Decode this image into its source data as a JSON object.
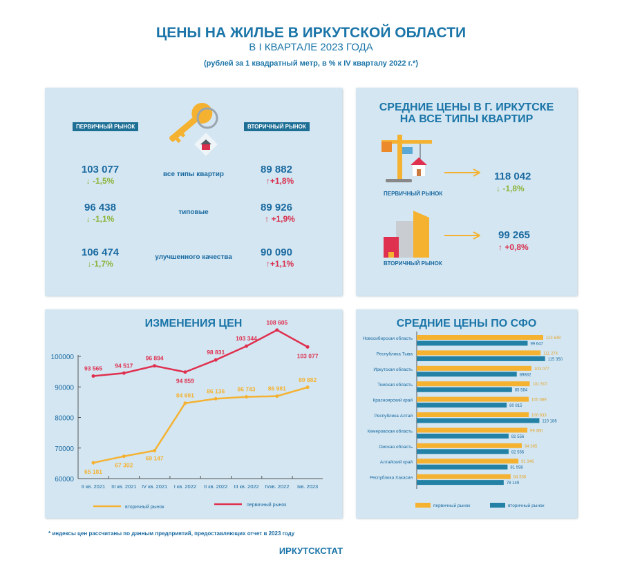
{
  "header": {
    "title": "ЦЕНЫ НА ЖИЛЬЕ В ИРКУТСКОЙ ОБЛАСТИ",
    "subtitle": "В I КВАРТАЛЕ 2023 ГОДА",
    "units": "(рублей за 1 квадратный метр, в % к IV кварталу 2022 г.*)"
  },
  "region_panel": {
    "primary_tag": "ПЕРВИЧНЫЙ РЫНОК",
    "secondary_tag": "ВТОРИЧНЫЙ РЫНОК",
    "rows": [
      {
        "label": "все типы квартир",
        "primary": "103 077",
        "primary_change": "↓ -1,5%",
        "secondary": "89 882",
        "secondary_change": "↑+1,8%"
      },
      {
        "label": "типовые",
        "primary": "96 438",
        "primary_change": "↓ -1,1%",
        "secondary": "89 926",
        "secondary_change": "↑ +1,9%"
      },
      {
        "label": "улучшенного качества",
        "primary": "106 474",
        "primary_change": "↓-1,7%",
        "secondary": "90 090",
        "secondary_change": "↑+1,1%"
      }
    ]
  },
  "city_panel": {
    "title_line1": "СРЕДНИЕ  ЦЕНЫ  В  Г.  ИРКУТСКЕ",
    "title_line2": "НА ВСЕ ТИПЫ КВАРТИР",
    "primary": {
      "label": "ПЕРВИЧНЫЙ РЫНОК",
      "value": "118 042",
      "change": "↓ -1,8%"
    },
    "secondary": {
      "label": "ВТОРИЧНЫЙ РЫНОК",
      "value": "99 265",
      "change": "↑ +0,8%"
    }
  },
  "colors": {
    "primary": "#e0304f",
    "secondary": "#f5b231",
    "blue": "#2381a6",
    "panel": "#d3e6f2"
  },
  "chart_data": [
    {
      "type": "line",
      "title": "ИЗМЕНЕНИЯ ЦЕН",
      "ylim": [
        60000,
        100000
      ],
      "yticks": [
        "60000",
        "70000",
        "80000",
        "90000",
        "100000"
      ],
      "categories": [
        "II кв. 2021",
        "III кв. 2021",
        "IV кв. 2021",
        "I кв. 2022",
        "II кв. 2022",
        "III кв. 2022",
        "IVкв. 2022",
        "Iкв. 2023"
      ],
      "series": [
        {
          "name": "первичный рынок",
          "values": [
            93565,
            94517,
            96894,
            94859,
            98831,
            103344,
            108605,
            103077
          ],
          "labels": [
            "93 565",
            "94 517",
            "96 894",
            "94 859",
            "98 831",
            "103 344",
            "108 605",
            "103 077"
          ]
        },
        {
          "name": "вторичный рынок",
          "values": [
            65181,
            67302,
            69147,
            84691,
            86136,
            86743,
            86981,
            89882
          ],
          "labels": [
            "65 181",
            "67 302",
            "69 147",
            "84 691",
            "86 136",
            "86 743",
            "86 981",
            "89 882"
          ]
        }
      ]
    },
    {
      "type": "bar",
      "title": "СРЕДНИЕ ЦЕНЫ ПО СФО",
      "orientation": "horizontal",
      "categories": [
        "Новосибирская область",
        "Республика Тыва",
        "Иркутская область",
        "Томская область",
        "Красноярский край",
        "Республика Алтай",
        "Кемеровская область",
        "Омская область",
        "Алтайский край",
        "Республика Хакасия"
      ],
      "series": [
        {
          "name": "первичный рынок",
          "values": [
            113648,
            111274,
            103077,
            101507,
            100589,
            100633,
            99360,
            94385,
            91346,
            84336
          ],
          "labels": [
            "113 648",
            "111 274",
            "103 077",
            "101 507",
            "100 589",
            "100 633",
            "99 360",
            "94 385",
            "91 346",
            "84 336"
          ]
        },
        {
          "name": "вторичный рынок",
          "values": [
            99647,
            115350,
            89882,
            85584,
            80815,
            110186,
            82556,
            82556,
            81598,
            78149
          ],
          "labels": [
            "99 647",
            "115 350",
            "89882",
            "85 584",
            "80 815",
            "110 186",
            "82 556",
            "82 556",
            "81 598",
            "78 149"
          ]
        }
      ]
    }
  ],
  "footer": {
    "note": "* индексы цен рассчитаны по данным предприятий, предоставляющих отчет в 2023 году",
    "source": "ИРКУТСКСТАТ"
  }
}
